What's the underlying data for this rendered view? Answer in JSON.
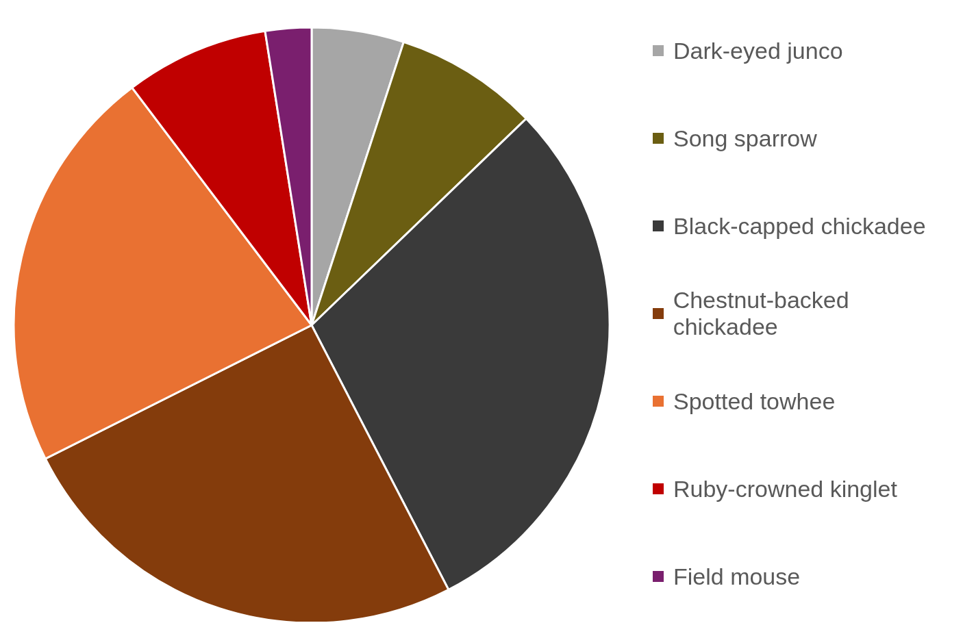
{
  "chart_data": {
    "type": "pie",
    "legend": "right",
    "categories": [
      "Dark-eyed junco",
      "Song sparrow",
      "Black-capped chickadee",
      "Chestnut-backed chickadee",
      "Spotted towhee",
      "Ruby-crowned kinglet",
      "Field mouse"
    ],
    "values": [
      5,
      7.8,
      29.6,
      25.2,
      22.1,
      7.8,
      2.5
    ],
    "colors": [
      "#a6a6a6",
      "#6b5e12",
      "#3a3a3a",
      "#843c0c",
      "#e97132",
      "#c00000",
      "#7a1f6e"
    ]
  }
}
